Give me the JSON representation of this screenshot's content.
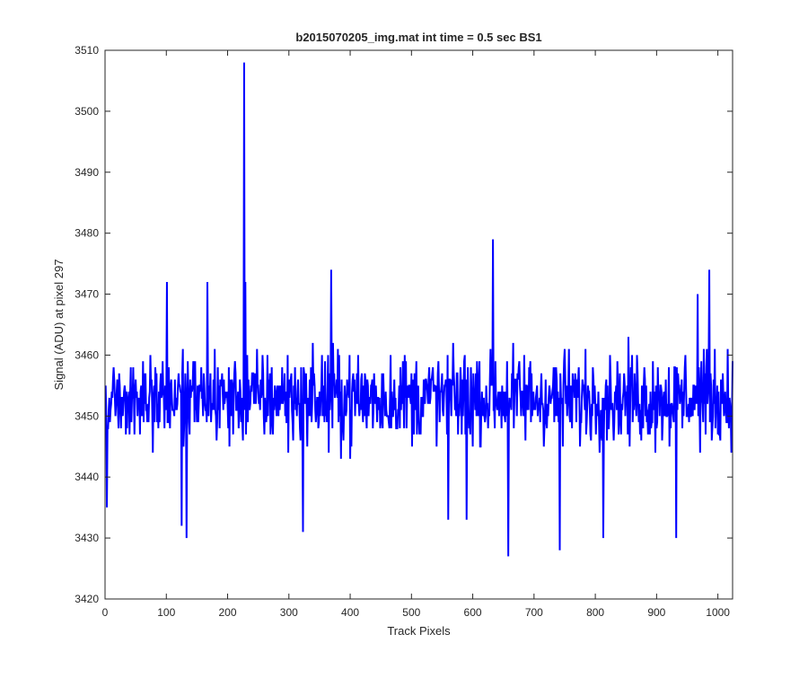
{
  "chart_data": {
    "type": "line",
    "title": "b2015070205_img.mat int time = 0.5 sec   BS1",
    "xlabel": "Track Pixels",
    "ylabel": "Signal (ADU) at pixel 297",
    "xlim": [
      0,
      1024
    ],
    "ylim": [
      3420,
      3510
    ],
    "xticks": [
      0,
      100,
      200,
      300,
      400,
      500,
      600,
      700,
      800,
      900,
      1000
    ],
    "yticks": [
      3420,
      3430,
      3440,
      3450,
      3460,
      3470,
      3480,
      3490,
      3500,
      3510
    ],
    "grid": false,
    "series": [
      {
        "color": "#0000ff",
        "x_start": 1,
        "x_step": 1,
        "noise_mean": 3453,
        "noise_range": [
          3427,
          3479
        ],
        "peaks": [
          {
            "x": 227,
            "y": 3508
          },
          {
            "x": 633,
            "y": 3479
          },
          {
            "x": 229,
            "y": 3472
          },
          {
            "x": 101,
            "y": 3472
          },
          {
            "x": 167,
            "y": 3472
          },
          {
            "x": 369,
            "y": 3474
          },
          {
            "x": 986,
            "y": 3474
          },
          {
            "x": 967,
            "y": 3470
          }
        ],
        "dips": [
          {
            "x": 658,
            "y": 3427
          },
          {
            "x": 742,
            "y": 3428
          },
          {
            "x": 323,
            "y": 3431
          },
          {
            "x": 133,
            "y": 3430
          },
          {
            "x": 813,
            "y": 3430
          },
          {
            "x": 932,
            "y": 3430
          },
          {
            "x": 125,
            "y": 3432
          },
          {
            "x": 560,
            "y": 3433
          },
          {
            "x": 590,
            "y": 3433
          },
          {
            "x": 3,
            "y": 3435
          }
        ]
      }
    ]
  }
}
